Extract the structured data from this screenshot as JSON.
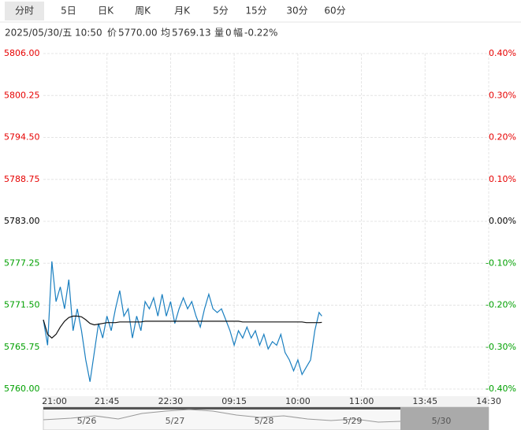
{
  "tabs": [
    "分时",
    "5日",
    "日K",
    "周K",
    "月K",
    "5分",
    "15分",
    "30分",
    "60分"
  ],
  "info": {
    "time": "2025/05/30/五 10:50",
    "price_label": "价",
    "price": "5770.00",
    "avg_label": "均",
    "avg": "5769.13",
    "vol_label": "量",
    "vol": "0",
    "change_label": "幅",
    "change": "-0.22%"
  },
  "chart_data": {
    "type": "line",
    "x": [
      0,
      3,
      6,
      9,
      12,
      15,
      18,
      21,
      24,
      27,
      30,
      33,
      36,
      39,
      42,
      45,
      48,
      51,
      54,
      57,
      60,
      63,
      66,
      69,
      72,
      75,
      78,
      81,
      84,
      87,
      90,
      93,
      96,
      99,
      102,
      105,
      108,
      111,
      114,
      117,
      120,
      123,
      126,
      129,
      132,
      135,
      138,
      141,
      144,
      147,
      150,
      153,
      156,
      159,
      162,
      165,
      168,
      171,
      174,
      177,
      180,
      183,
      186,
      189,
      192,
      195,
      197
    ],
    "xlim": [
      0,
      315
    ],
    "xticks": [
      {
        "value": 0,
        "label": "21:00"
      },
      {
        "value": 45,
        "label": "21:45"
      },
      {
        "value": 90,
        "label": "22:30"
      },
      {
        "value": 135,
        "label": "09:15"
      },
      {
        "value": 180,
        "label": "10:00"
      },
      {
        "value": 225,
        "label": "11:00"
      },
      {
        "value": 270,
        "label": "13:45"
      },
      {
        "value": 315,
        "label": "14:30"
      }
    ],
    "ylim": [
      5760,
      5806
    ],
    "yticks": [
      {
        "value": 5806,
        "label": "5806.00"
      },
      {
        "value": 5800.25,
        "label": "5800.25"
      },
      {
        "value": 5794.5,
        "label": "5794.50"
      },
      {
        "value": 5788.75,
        "label": "5788.75"
      },
      {
        "value": 5783,
        "label": "5783.00"
      },
      {
        "value": 5777.25,
        "label": "5777.25"
      },
      {
        "value": 5771.5,
        "label": "5771.50"
      },
      {
        "value": 5765.75,
        "label": "5765.75"
      },
      {
        "value": 5760,
        "label": "5760.00"
      }
    ],
    "y2lim": [
      -0.4,
      0.4
    ],
    "y2ticks": [
      {
        "value": 0.4,
        "label": "0.40%"
      },
      {
        "value": 0.3,
        "label": "0.30%"
      },
      {
        "value": 0.2,
        "label": "0.20%"
      },
      {
        "value": 0.1,
        "label": "0.10%"
      },
      {
        "value": 0,
        "label": "0.00%"
      },
      {
        "value": -0.1,
        "label": "-0.10%"
      },
      {
        "value": -0.2,
        "label": "-0.20%"
      },
      {
        "value": -0.3,
        "label": "-0.30%"
      },
      {
        "value": -0.4,
        "label": "-0.40%"
      }
    ],
    "grid": true,
    "up_color": "#e60000",
    "down_color": "#00a000",
    "flat_color": "#000000",
    "series": [
      {
        "color": "#1a7fc0",
        "values": [
          5769.5,
          5766,
          5777.5,
          5772,
          5774,
          5771,
          5775,
          5768,
          5771,
          5768,
          5764,
          5761,
          5765,
          5769,
          5767,
          5770,
          5768,
          5771,
          5773.5,
          5770,
          5771,
          5767,
          5770,
          5768,
          5772,
          5771,
          5772.5,
          5770,
          5773,
          5770,
          5772,
          5769,
          5771,
          5772.5,
          5771,
          5772,
          5770,
          5768.5,
          5771,
          5773,
          5771,
          5770.5,
          5771,
          5769.5,
          5768,
          5766,
          5768,
          5767,
          5768.5,
          5767,
          5768,
          5766,
          5767.5,
          5765.5,
          5766.5,
          5766,
          5767.5,
          5765,
          5764,
          5762.5,
          5764,
          5762,
          5763,
          5764,
          5768,
          5770.5,
          5770
        ]
      },
      {
        "color": "#111111",
        "values": [
          5769.5,
          5767.5,
          5767,
          5767.5,
          5768.5,
          5769.3,
          5769.8,
          5770,
          5770,
          5769.9,
          5769.5,
          5769,
          5768.8,
          5768.9,
          5769,
          5769.1,
          5769.1,
          5769.1,
          5769.2,
          5769.2,
          5769.2,
          5769.2,
          5769.2,
          5769.2,
          5769.3,
          5769.3,
          5769.3,
          5769.3,
          5769.3,
          5769.3,
          5769.3,
          5769.3,
          5769.3,
          5769.3,
          5769.3,
          5769.3,
          5769.3,
          5769.3,
          5769.3,
          5769.3,
          5769.3,
          5769.3,
          5769.3,
          5769.3,
          5769.3,
          5769.3,
          5769.3,
          5769.2,
          5769.2,
          5769.2,
          5769.2,
          5769.2,
          5769.2,
          5769.2,
          5769.2,
          5769.2,
          5769.2,
          5769.2,
          5769.2,
          5769.2,
          5769.2,
          5769.2,
          5769.1,
          5769.1,
          5769.1,
          5769.1,
          5769.13
        ]
      }
    ]
  },
  "navigator": {
    "dates": [
      "5/26",
      "5/27",
      "5/28",
      "5/29",
      "5/30"
    ]
  }
}
